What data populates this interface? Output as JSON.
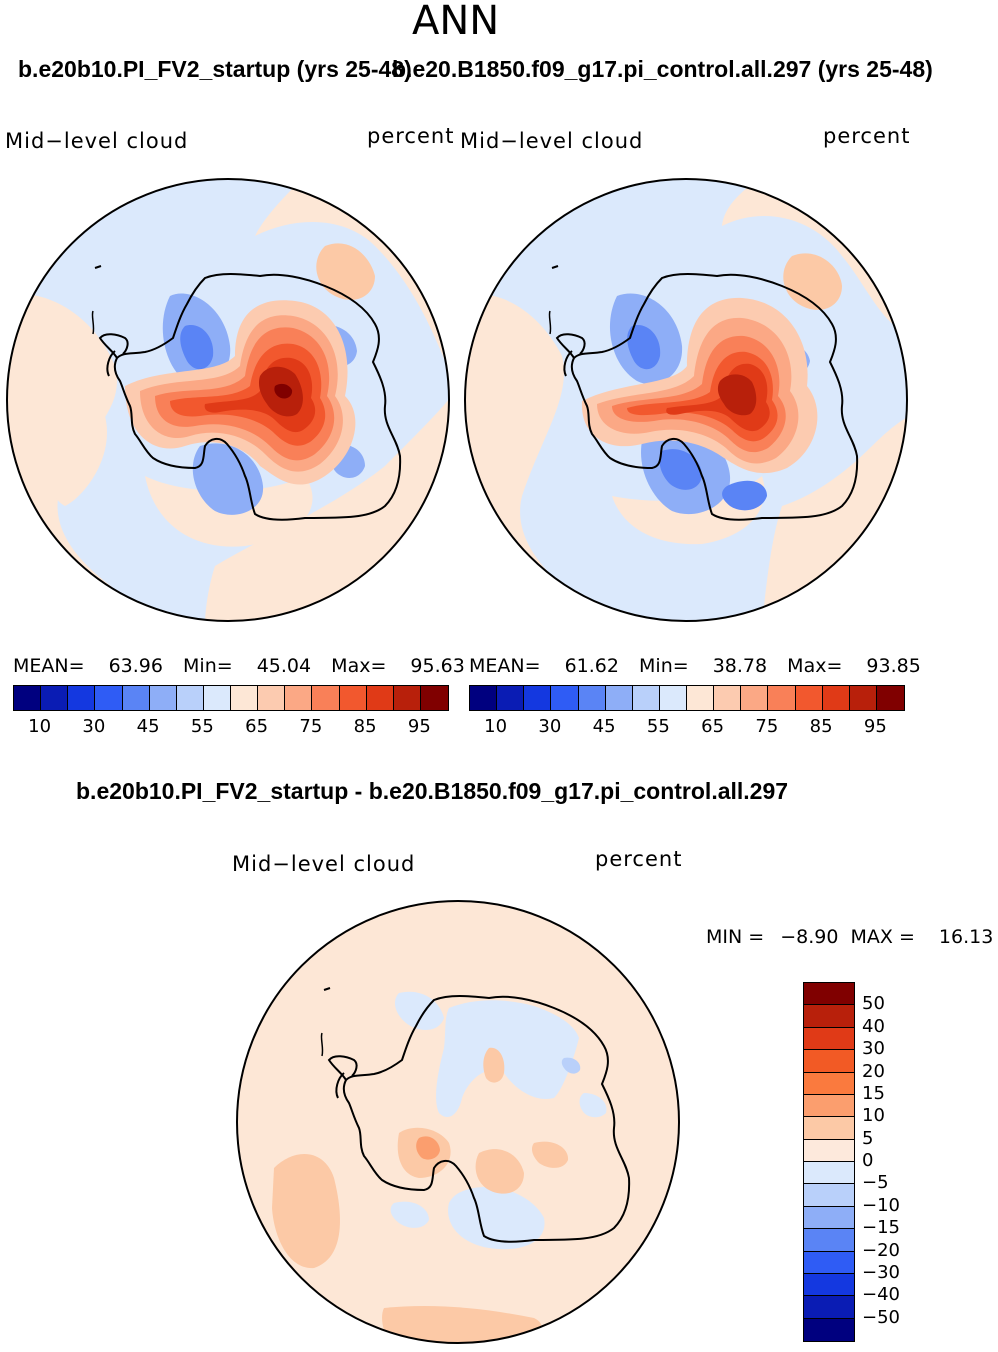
{
  "suptitle": "ANN",
  "panels": [
    {
      "run": "b.e20b10.PI_FV2_startup (yrs 25-48)",
      "variable": "Mid−level cloud",
      "units": "percent",
      "stats": {
        "mean_label": "MEAN=",
        "mean": "63.96",
        "min_label": "Min=",
        "min": "45.04",
        "max_label": "Max=",
        "max": "95.63"
      }
    },
    {
      "run": "b.e20.B1850.f09_g17.pi_control.all.297 (yrs 25-48)",
      "variable": "Mid−level cloud",
      "units": "percent",
      "stats": {
        "mean_label": "MEAN=",
        "mean": "61.62",
        "min_label": "Min=",
        "min": "38.78",
        "max_label": "Max=",
        "max": "93.85"
      }
    }
  ],
  "abs_colorbar": {
    "colors": [
      "#00007f",
      "#0a1cb4",
      "#1438e0",
      "#2f5cf5",
      "#5a84f5",
      "#8eaef7",
      "#b9d0fa",
      "#dbe9fc",
      "#fde7d6",
      "#fccbb0",
      "#fba885",
      "#f98058",
      "#f2582e",
      "#e03a17",
      "#b8200b",
      "#800000"
    ],
    "ticks": [
      "10",
      "30",
      "45",
      "55",
      "65",
      "75",
      "85",
      "95"
    ]
  },
  "diff_panel": {
    "title": "b.e20b10.PI_FV2_startup - b.e20.B1850.f09_g17.pi_control.all.297",
    "variable": "Mid−level cloud",
    "units": "percent",
    "min_label": "MIN =",
    "min": "−8.90",
    "max_label": "MAX =",
    "max": "16.13"
  },
  "diff_colorbar": {
    "colors_top_to_bottom": [
      "#800000",
      "#b8200b",
      "#e03a17",
      "#f25a25",
      "#fa7a3e",
      "#fb9e6e",
      "#fcc9a6",
      "#fde9dc",
      "#dbe9fc",
      "#b9d0fa",
      "#8eaef7",
      "#5a84f5",
      "#2f5cf5",
      "#1438e0",
      "#0a1cb4",
      "#00007f"
    ],
    "ticks": [
      "50",
      "40",
      "30",
      "20",
      "15",
      "10",
      "5",
      "0",
      "−5",
      "−10",
      "−15",
      "−20",
      "−30",
      "−40",
      "−50"
    ]
  },
  "palette": {
    "background": "#ffffff",
    "ocean_light_blue": "#dbe9fc",
    "ocean_peach": "#fde7d6",
    "land_outline": "#000000"
  }
}
